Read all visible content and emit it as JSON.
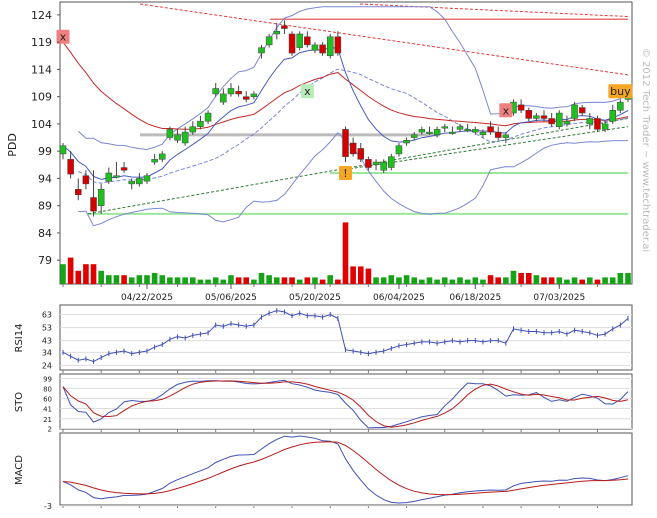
{
  "chart_data": {
    "type": "candlestick",
    "ticker": "PDD",
    "watermark": "© 2012 Tech Trader ~ www.techtrader.ai",
    "x_axis": {
      "dates": [
        "04/22/2025",
        "05/06/2025",
        "05/20/2025",
        "06/04/2025",
        "06/18/2025",
        "07/03/2025"
      ]
    },
    "main_panel": {
      "ylabel": "PDD",
      "ylim": [
        75,
        126
      ],
      "yticks": [
        124,
        119,
        114,
        109,
        104,
        99,
        94,
        89,
        84,
        79
      ],
      "candles": [
        [
          98.5,
          100.5,
          97.5,
          100.0
        ],
        [
          97.5,
          99.0,
          94.0,
          94.8
        ],
        [
          92.0,
          94.0,
          90.0,
          91.0
        ],
        [
          94.5,
          95.5,
          92.0,
          93.0
        ],
        [
          90.5,
          95.5,
          87.0,
          88.0
        ],
        [
          89.0,
          93.0,
          87.5,
          92.0
        ],
        [
          93.5,
          96.0,
          93.0,
          95.0
        ],
        [
          94.5,
          97.0,
          94.0,
          94.5
        ],
        [
          96.0,
          97.0,
          95.0,
          95.5
        ],
        [
          93.0,
          94.0,
          92.0,
          93.5
        ],
        [
          93.0,
          95.0,
          92.5,
          94.0
        ],
        [
          93.5,
          95.0,
          93.0,
          94.5
        ],
        [
          97.0,
          98.5,
          96.5,
          97.5
        ],
        [
          97.5,
          99.0,
          97.0,
          98.5
        ],
        [
          101.5,
          103.5,
          101.0,
          103.0
        ],
        [
          101.0,
          103.0,
          100.5,
          102.0
        ],
        [
          100.5,
          103.5,
          100.0,
          102.5
        ],
        [
          102.5,
          104.5,
          102.0,
          103.5
        ],
        [
          103.5,
          105.5,
          103.0,
          104.5
        ],
        [
          104.5,
          106.5,
          104.0,
          106.0
        ],
        [
          109.5,
          111.5,
          109.0,
          110.5
        ],
        [
          108.0,
          110.5,
          107.5,
          109.5
        ],
        [
          109.5,
          111.5,
          109.0,
          110.5
        ],
        [
          110.0,
          111.0,
          109.0,
          109.5
        ],
        [
          109.0,
          110.0,
          108.0,
          108.5
        ],
        [
          109.0,
          110.0,
          108.5,
          109.5
        ],
        [
          117.0,
          118.5,
          116.0,
          118.0
        ],
        [
          118.5,
          120.5,
          118.0,
          120.0
        ],
        [
          120.5,
          122.5,
          119.5,
          121.0
        ],
        [
          122.0,
          123.0,
          120.5,
          121.5
        ],
        [
          120.5,
          121.0,
          116.5,
          117.0
        ],
        [
          118.0,
          121.0,
          117.5,
          120.5
        ],
        [
          120.0,
          121.0,
          118.0,
          118.5
        ],
        [
          117.5,
          119.0,
          117.0,
          118.5
        ],
        [
          118.5,
          119.0,
          116.5,
          117.0
        ],
        [
          116.5,
          120.5,
          116.0,
          120.0
        ],
        [
          120.0,
          121.0,
          116.5,
          117.0
        ],
        [
          103.0,
          103.5,
          97.0,
          98.0
        ],
        [
          100.5,
          101.5,
          98.0,
          98.5
        ],
        [
          99.5,
          100.5,
          97.0,
          97.5
        ],
        [
          97.5,
          98.0,
          95.5,
          96.0
        ],
        [
          96.5,
          97.5,
          95.5,
          97.0
        ],
        [
          95.5,
          97.5,
          95.0,
          97.0
        ],
        [
          96.0,
          98.5,
          95.5,
          98.0
        ],
        [
          98.5,
          100.5,
          98.0,
          100.0
        ],
        [
          100.5,
          101.5,
          100.0,
          101.0
        ],
        [
          101.5,
          102.5,
          101.0,
          102.0
        ],
        [
          102.5,
          103.5,
          102.0,
          103.0
        ],
        [
          102.5,
          103.5,
          102.0,
          102.5
        ],
        [
          102.0,
          103.5,
          101.5,
          103.0
        ],
        [
          103.5,
          104.0,
          102.5,
          103.5
        ],
        [
          102.5,
          103.5,
          102.0,
          102.5
        ],
        [
          103.0,
          104.0,
          102.5,
          103.5
        ],
        [
          103.0,
          104.0,
          102.5,
          103.0
        ],
        [
          102.5,
          103.5,
          102.0,
          103.0
        ],
        [
          102.0,
          103.0,
          101.5,
          102.5
        ],
        [
          103.5,
          104.5,
          102.0,
          102.5
        ],
        [
          102.5,
          103.5,
          101.0,
          101.5
        ],
        [
          101.5,
          102.5,
          100.5,
          102.0
        ],
        [
          106.0,
          108.5,
          105.5,
          108.0
        ],
        [
          107.5,
          108.5,
          106.0,
          106.5
        ],
        [
          106.5,
          107.0,
          104.5,
          105.0
        ],
        [
          105.0,
          106.0,
          104.5,
          105.5
        ],
        [
          105.5,
          106.5,
          104.5,
          105.0
        ],
        [
          105.0,
          106.0,
          103.5,
          104.0
        ],
        [
          103.5,
          106.5,
          103.0,
          106.0
        ],
        [
          104.0,
          105.5,
          103.5,
          104.5
        ],
        [
          105.0,
          108.0,
          104.5,
          107.5
        ],
        [
          107.0,
          107.5,
          105.5,
          106.0
        ],
        [
          104.0,
          106.0,
          103.0,
          105.0
        ],
        [
          105.0,
          105.5,
          102.5,
          103.0
        ],
        [
          103.0,
          104.5,
          102.5,
          104.0
        ],
        [
          104.5,
          107.5,
          104.0,
          106.5
        ],
        [
          106.5,
          108.5,
          106.0,
          108.0
        ],
        [
          108.5,
          109.5,
          108.0,
          109.0
        ]
      ],
      "volumes": [
        9,
        12,
        6,
        9,
        9,
        6,
        4,
        4,
        4,
        3,
        4,
        4,
        5,
        4,
        3,
        3,
        3,
        3,
        2,
        2,
        3,
        2,
        4,
        3,
        3,
        2,
        5,
        4,
        3,
        3,
        3,
        2,
        3,
        3,
        2,
        4,
        2,
        28,
        8,
        8,
        7,
        3,
        3,
        4,
        3,
        4,
        3,
        2,
        3,
        2,
        3,
        2,
        3,
        2,
        3,
        2,
        4,
        3,
        3,
        6,
        5,
        5,
        4,
        3,
        3,
        3,
        2,
        3,
        2,
        3,
        2,
        3,
        3,
        5,
        5
      ],
      "markers": [
        {
          "text": "x",
          "value": 120.0,
          "candle": 0,
          "color": "#f08080"
        },
        {
          "text": "x",
          "value": 110.0,
          "candle": 32,
          "color": "#b8ecb8"
        },
        {
          "text": "!",
          "value": 95.0,
          "candle": 37,
          "color": "#f5a623"
        },
        {
          "text": "x",
          "value": 106.5,
          "candle": 58,
          "color": "#f08080"
        },
        {
          "text": "buy",
          "value": 110.0,
          "candle": 73,
          "color": "#f5a623"
        }
      ]
    },
    "rsi_panel": {
      "ylabel": "RSI14",
      "ylim": [
        22,
        68
      ],
      "yticks": [
        63,
        53,
        43,
        34,
        24
      ],
      "values": [
        34,
        31,
        28,
        29,
        27,
        30,
        33,
        34,
        35,
        33,
        34,
        35,
        38,
        40,
        44,
        46,
        45,
        47,
        48,
        49,
        55,
        54,
        56,
        55,
        54,
        55,
        61,
        64,
        66,
        65,
        62,
        64,
        62,
        62,
        61,
        63,
        60,
        36,
        35,
        34,
        33,
        34,
        35,
        37,
        39,
        40,
        41,
        42,
        42,
        41,
        42,
        43,
        42,
        43,
        43,
        42,
        43,
        43,
        41,
        52,
        51,
        50,
        50,
        49,
        49,
        50,
        48,
        51,
        50,
        49,
        47,
        48,
        52,
        55,
        60
      ]
    },
    "sto_panel": {
      "ylabel": "STO",
      "ylim": [
        5,
        102
      ],
      "yticks": [
        99,
        80,
        60,
        41,
        21,
        2
      ]
    },
    "macd_panel": {
      "ylabel": "MACD",
      "yticks": [
        -3
      ]
    }
  }
}
